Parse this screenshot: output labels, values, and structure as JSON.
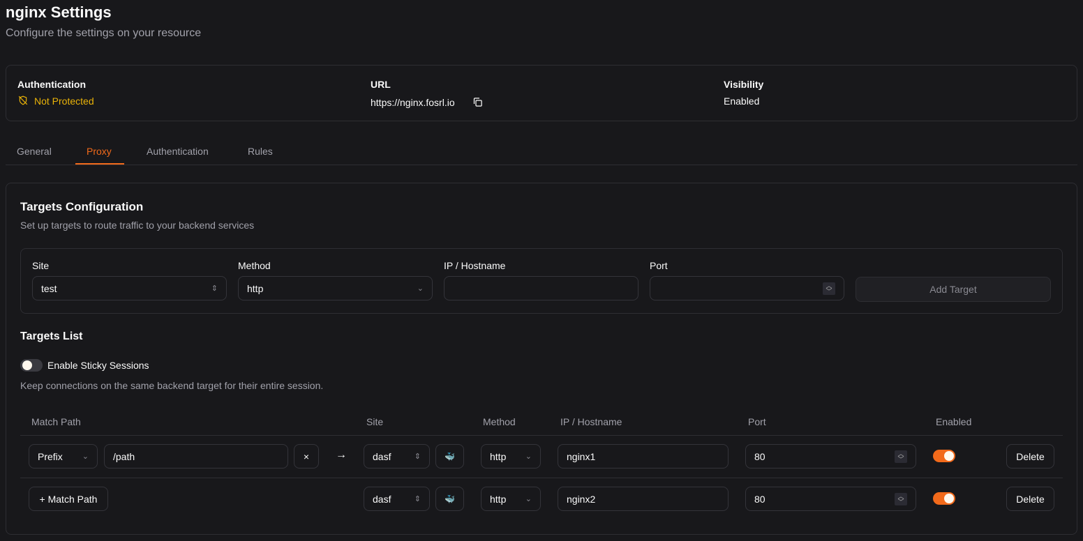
{
  "header": {
    "title": "nginx Settings",
    "subtitle": "Configure the settings on your resource"
  },
  "info": {
    "auth_label": "Authentication",
    "auth_value": "Not Protected",
    "url_label": "URL",
    "url_value": "https://nginx.fosrl.io",
    "visibility_label": "Visibility",
    "visibility_value": "Enabled"
  },
  "tabs": [
    {
      "label": "General"
    },
    {
      "label": "Proxy",
      "active": true
    },
    {
      "label": "Authentication"
    },
    {
      "label": "Rules"
    }
  ],
  "targets_config": {
    "title": "Targets Configuration",
    "description": "Set up targets to route traffic to your backend services",
    "site_label": "Site",
    "site_value": "test",
    "method_label": "Method",
    "method_value": "http",
    "ip_label": "IP / Hostname",
    "ip_value": "",
    "port_label": "Port",
    "port_value": "",
    "add_button": "Add Target"
  },
  "targets_list": {
    "title": "Targets List",
    "sticky_label": "Enable Sticky Sessions",
    "sticky_enabled": false,
    "sticky_description": "Keep connections on the same backend target for their entire session.",
    "columns": [
      "Match Path",
      "Site",
      "Method",
      "IP / Hostname",
      "Port",
      "Enabled"
    ],
    "rows": [
      {
        "match_type": "Prefix",
        "path": "/path",
        "clear": "×",
        "arrow": "→",
        "site": "dasf",
        "method": "http",
        "ip": "nginx1",
        "port": "80",
        "enabled": true,
        "delete": "Delete"
      },
      {
        "add_match": "+ Match Path",
        "site": "dasf",
        "method": "http",
        "ip": "nginx2",
        "port": "80",
        "enabled": true,
        "delete": "Delete"
      }
    ]
  },
  "colors": {
    "accent": "#f26a1b",
    "warning": "#eab308",
    "background": "#18181b"
  }
}
